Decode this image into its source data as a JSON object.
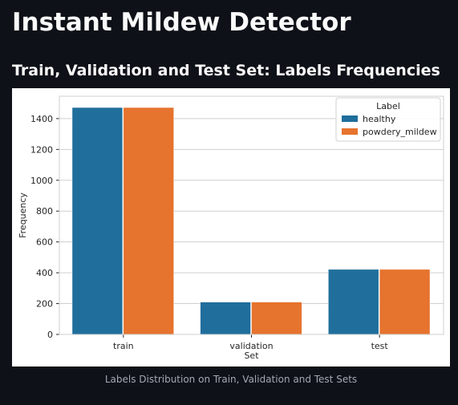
{
  "page": {
    "title": "Instant Mildew Detector",
    "section_title": "Train, Validation and Test Set: Labels Frequencies",
    "caption": "Labels Distribution on Train, Validation and Test Sets"
  },
  "colors": {
    "background": "#0e1117",
    "text": "#fafafa",
    "caption": "#a3a8b4",
    "healthy": "#1f6e9c",
    "powdery_mildew": "#e6732e"
  },
  "chart_data": {
    "type": "bar",
    "title": "",
    "xlabel": "Set",
    "ylabel": "Frequency",
    "categories": [
      "train",
      "validation",
      "test"
    ],
    "series": [
      {
        "name": "healthy",
        "values": [
          1472,
          210,
          422
        ]
      },
      {
        "name": "powdery_mildew",
        "values": [
          1472,
          210,
          422
        ]
      }
    ],
    "ylim": [
      0,
      1545
    ],
    "yticks": [
      0,
      200,
      400,
      600,
      800,
      1000,
      1200,
      1400
    ],
    "grid": true,
    "legend": {
      "title": "Label",
      "placement": "top-right"
    }
  }
}
